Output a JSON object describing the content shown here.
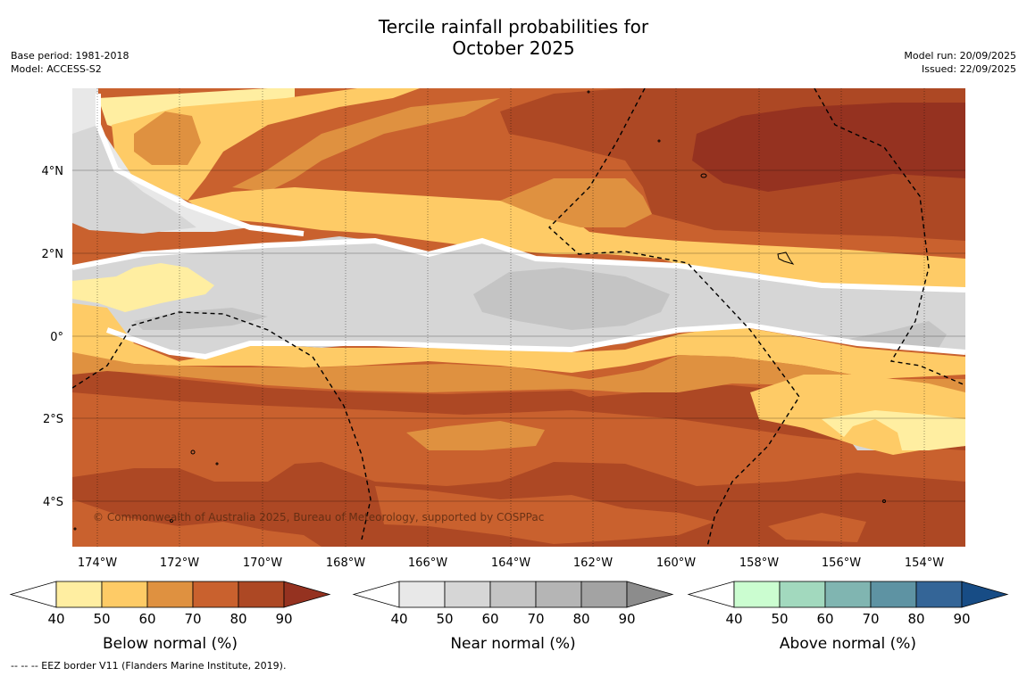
{
  "title": {
    "line1": "Tercile rainfall probabilities for",
    "line2": "October 2025"
  },
  "meta_left": {
    "base_period": "Base period: 1981-2018",
    "model": "Model: ACCESS-S2"
  },
  "meta_right": {
    "model_run": "Model run: 20/09/2025",
    "issued": "Issued: 22/09/2025"
  },
  "map": {
    "lat_labels": [
      "4°N",
      "2°N",
      "0°",
      "2°S",
      "4°S"
    ],
    "lon_labels": [
      "174°W",
      "172°W",
      "170°W",
      "168°W",
      "166°W",
      "164°W",
      "162°W",
      "160°W",
      "158°W",
      "156°W",
      "154°W"
    ],
    "copyright": "© Commonwealth of Australia 2025, Bureau of Meteorology, supported by COSPPac"
  },
  "colorbars": [
    {
      "label": "Below normal (%)",
      "ticks": [
        "40",
        "50",
        "60",
        "70",
        "80",
        "90"
      ],
      "colors": [
        "#ffeea1",
        "#fecb66",
        "#df9140",
        "#c9612e",
        "#ad4824",
        "#953220"
      ]
    },
    {
      "label": "Near normal (%)",
      "ticks": [
        "40",
        "50",
        "60",
        "70",
        "80",
        "90"
      ],
      "colors": [
        "#e8e8e8",
        "#d6d6d6",
        "#c4c4c4",
        "#b5b5b5",
        "#a3a3a3",
        "#8c8c8c"
      ]
    },
    {
      "label": "Above normal (%)",
      "ticks": [
        "40",
        "50",
        "60",
        "70",
        "80",
        "90"
      ],
      "colors": [
        "#cbfdd0",
        "#a2d9be",
        "#80b5b1",
        "#5e93a3",
        "#346597",
        "#174c85"
      ]
    }
  ],
  "footnote": "-- -- -- EEZ border V11 (Flanders Marine Institute, 2019)."
}
